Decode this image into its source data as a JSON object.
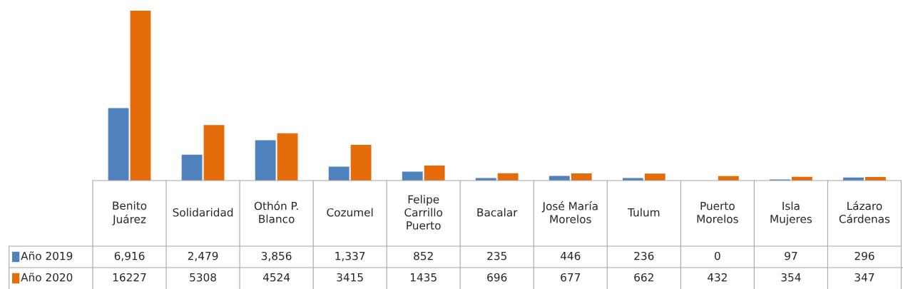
{
  "chart_data": {
    "type": "bar",
    "categories": [
      "Benito Juárez",
      "Solidaridad",
      "Othón P. Blanco",
      "Cozumel",
      "Felipe Carrillo Puerto",
      "Bacalar",
      "José María Morelos",
      "Tulum",
      "Puerto Morelos",
      "Isla Mujeres",
      "Lázaro Cárdenas"
    ],
    "series": [
      {
        "name": "Año 2019",
        "color": "#4f81bd",
        "values": [
          6916,
          2479,
          3856,
          1337,
          852,
          235,
          446,
          236,
          0,
          97,
          296
        ],
        "value_labels": [
          "6,916",
          "2,479",
          "3,856",
          "1,337",
          "852",
          "235",
          "446",
          "236",
          "0",
          "97",
          "296"
        ]
      },
      {
        "name": "Año 2020",
        "color": "#e46c0a",
        "values": [
          16227,
          5308,
          4524,
          3415,
          1435,
          696,
          677,
          662,
          432,
          354,
          347
        ],
        "value_labels": [
          "16227",
          "5308",
          "4524",
          "3415",
          "1435",
          "696",
          "677",
          "662",
          "432",
          "354",
          "347"
        ]
      }
    ],
    "legend": "bottom left"
  }
}
